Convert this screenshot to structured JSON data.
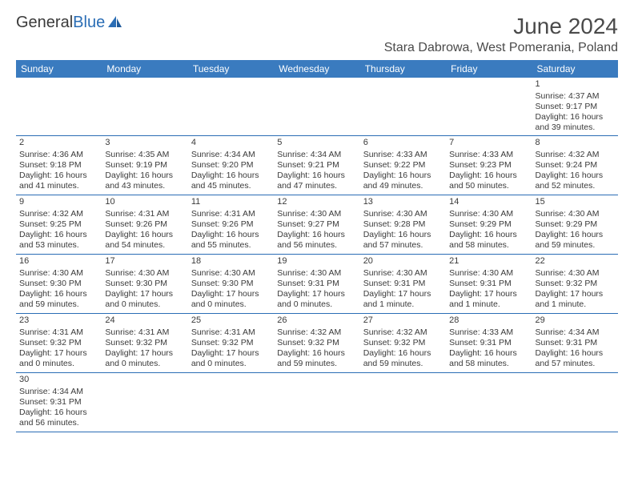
{
  "logo": {
    "word1": "General",
    "word2": "Blue"
  },
  "title": "June 2024",
  "location": "Stara Dabrowa, West Pomerania, Poland",
  "colors": {
    "header_bg": "#3a7bbf",
    "header_text": "#ffffff",
    "border": "#2a6db5",
    "text": "#3a3a3a",
    "logo_blue": "#2a6db5",
    "background": "#ffffff"
  },
  "typography": {
    "title_fontsize": 28,
    "location_fontsize": 16,
    "dayheader_fontsize": 12,
    "cell_fontsize": 10.5,
    "logo_fontsize": 20
  },
  "day_headers": [
    "Sunday",
    "Monday",
    "Tuesday",
    "Wednesday",
    "Thursday",
    "Friday",
    "Saturday"
  ],
  "weeks": [
    [
      null,
      null,
      null,
      null,
      null,
      null,
      {
        "n": "1",
        "sr": "Sunrise: 4:37 AM",
        "ss": "Sunset: 9:17 PM",
        "dl1": "Daylight: 16 hours",
        "dl2": "and 39 minutes."
      }
    ],
    [
      {
        "n": "2",
        "sr": "Sunrise: 4:36 AM",
        "ss": "Sunset: 9:18 PM",
        "dl1": "Daylight: 16 hours",
        "dl2": "and 41 minutes."
      },
      {
        "n": "3",
        "sr": "Sunrise: 4:35 AM",
        "ss": "Sunset: 9:19 PM",
        "dl1": "Daylight: 16 hours",
        "dl2": "and 43 minutes."
      },
      {
        "n": "4",
        "sr": "Sunrise: 4:34 AM",
        "ss": "Sunset: 9:20 PM",
        "dl1": "Daylight: 16 hours",
        "dl2": "and 45 minutes."
      },
      {
        "n": "5",
        "sr": "Sunrise: 4:34 AM",
        "ss": "Sunset: 9:21 PM",
        "dl1": "Daylight: 16 hours",
        "dl2": "and 47 minutes."
      },
      {
        "n": "6",
        "sr": "Sunrise: 4:33 AM",
        "ss": "Sunset: 9:22 PM",
        "dl1": "Daylight: 16 hours",
        "dl2": "and 49 minutes."
      },
      {
        "n": "7",
        "sr": "Sunrise: 4:33 AM",
        "ss": "Sunset: 9:23 PM",
        "dl1": "Daylight: 16 hours",
        "dl2": "and 50 minutes."
      },
      {
        "n": "8",
        "sr": "Sunrise: 4:32 AM",
        "ss": "Sunset: 9:24 PM",
        "dl1": "Daylight: 16 hours",
        "dl2": "and 52 minutes."
      }
    ],
    [
      {
        "n": "9",
        "sr": "Sunrise: 4:32 AM",
        "ss": "Sunset: 9:25 PM",
        "dl1": "Daylight: 16 hours",
        "dl2": "and 53 minutes."
      },
      {
        "n": "10",
        "sr": "Sunrise: 4:31 AM",
        "ss": "Sunset: 9:26 PM",
        "dl1": "Daylight: 16 hours",
        "dl2": "and 54 minutes."
      },
      {
        "n": "11",
        "sr": "Sunrise: 4:31 AM",
        "ss": "Sunset: 9:26 PM",
        "dl1": "Daylight: 16 hours",
        "dl2": "and 55 minutes."
      },
      {
        "n": "12",
        "sr": "Sunrise: 4:30 AM",
        "ss": "Sunset: 9:27 PM",
        "dl1": "Daylight: 16 hours",
        "dl2": "and 56 minutes."
      },
      {
        "n": "13",
        "sr": "Sunrise: 4:30 AM",
        "ss": "Sunset: 9:28 PM",
        "dl1": "Daylight: 16 hours",
        "dl2": "and 57 minutes."
      },
      {
        "n": "14",
        "sr": "Sunrise: 4:30 AM",
        "ss": "Sunset: 9:29 PM",
        "dl1": "Daylight: 16 hours",
        "dl2": "and 58 minutes."
      },
      {
        "n": "15",
        "sr": "Sunrise: 4:30 AM",
        "ss": "Sunset: 9:29 PM",
        "dl1": "Daylight: 16 hours",
        "dl2": "and 59 minutes."
      }
    ],
    [
      {
        "n": "16",
        "sr": "Sunrise: 4:30 AM",
        "ss": "Sunset: 9:30 PM",
        "dl1": "Daylight: 16 hours",
        "dl2": "and 59 minutes."
      },
      {
        "n": "17",
        "sr": "Sunrise: 4:30 AM",
        "ss": "Sunset: 9:30 PM",
        "dl1": "Daylight: 17 hours",
        "dl2": "and 0 minutes."
      },
      {
        "n": "18",
        "sr": "Sunrise: 4:30 AM",
        "ss": "Sunset: 9:30 PM",
        "dl1": "Daylight: 17 hours",
        "dl2": "and 0 minutes."
      },
      {
        "n": "19",
        "sr": "Sunrise: 4:30 AM",
        "ss": "Sunset: 9:31 PM",
        "dl1": "Daylight: 17 hours",
        "dl2": "and 0 minutes."
      },
      {
        "n": "20",
        "sr": "Sunrise: 4:30 AM",
        "ss": "Sunset: 9:31 PM",
        "dl1": "Daylight: 17 hours",
        "dl2": "and 1 minute."
      },
      {
        "n": "21",
        "sr": "Sunrise: 4:30 AM",
        "ss": "Sunset: 9:31 PM",
        "dl1": "Daylight: 17 hours",
        "dl2": "and 1 minute."
      },
      {
        "n": "22",
        "sr": "Sunrise: 4:30 AM",
        "ss": "Sunset: 9:32 PM",
        "dl1": "Daylight: 17 hours",
        "dl2": "and 1 minute."
      }
    ],
    [
      {
        "n": "23",
        "sr": "Sunrise: 4:31 AM",
        "ss": "Sunset: 9:32 PM",
        "dl1": "Daylight: 17 hours",
        "dl2": "and 0 minutes."
      },
      {
        "n": "24",
        "sr": "Sunrise: 4:31 AM",
        "ss": "Sunset: 9:32 PM",
        "dl1": "Daylight: 17 hours",
        "dl2": "and 0 minutes."
      },
      {
        "n": "25",
        "sr": "Sunrise: 4:31 AM",
        "ss": "Sunset: 9:32 PM",
        "dl1": "Daylight: 17 hours",
        "dl2": "and 0 minutes."
      },
      {
        "n": "26",
        "sr": "Sunrise: 4:32 AM",
        "ss": "Sunset: 9:32 PM",
        "dl1": "Daylight: 16 hours",
        "dl2": "and 59 minutes."
      },
      {
        "n": "27",
        "sr": "Sunrise: 4:32 AM",
        "ss": "Sunset: 9:32 PM",
        "dl1": "Daylight: 16 hours",
        "dl2": "and 59 minutes."
      },
      {
        "n": "28",
        "sr": "Sunrise: 4:33 AM",
        "ss": "Sunset: 9:31 PM",
        "dl1": "Daylight: 16 hours",
        "dl2": "and 58 minutes."
      },
      {
        "n": "29",
        "sr": "Sunrise: 4:34 AM",
        "ss": "Sunset: 9:31 PM",
        "dl1": "Daylight: 16 hours",
        "dl2": "and 57 minutes."
      }
    ],
    [
      {
        "n": "30",
        "sr": "Sunrise: 4:34 AM",
        "ss": "Sunset: 9:31 PM",
        "dl1": "Daylight: 16 hours",
        "dl2": "and 56 minutes."
      },
      null,
      null,
      null,
      null,
      null,
      null
    ]
  ]
}
